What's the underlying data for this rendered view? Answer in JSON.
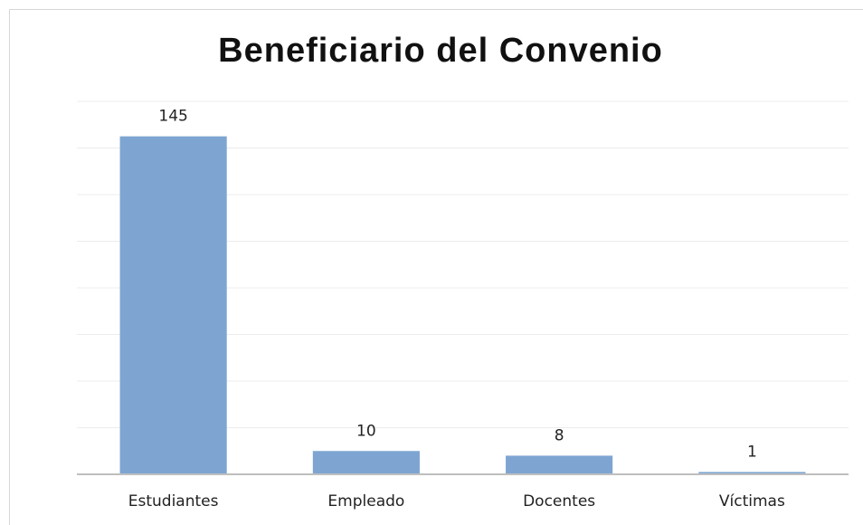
{
  "chart_data": {
    "type": "bar",
    "title": "Beneficiario del Convenio",
    "categories": [
      "Estudiantes",
      "Empleado",
      "Docentes",
      "Víctimas"
    ],
    "values": [
      145,
      10,
      8,
      1
    ],
    "color": "#7ea5d2",
    "ylim": [
      0,
      160
    ],
    "yticks": [
      0,
      20,
      40,
      60,
      80,
      100,
      120,
      140,
      160
    ],
    "grid": true
  }
}
